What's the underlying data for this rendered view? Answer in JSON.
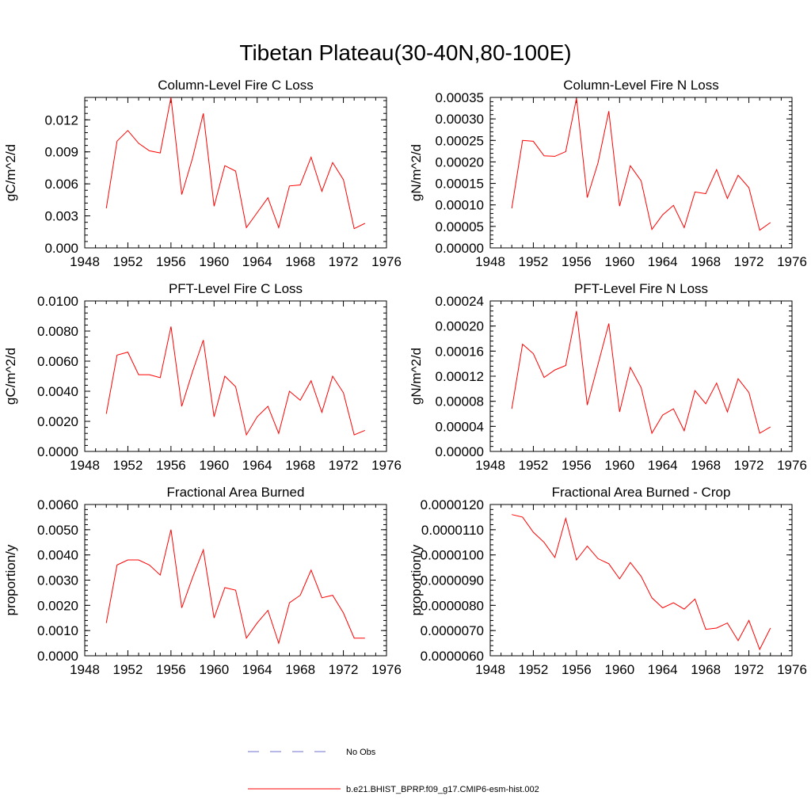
{
  "figure": {
    "title": "Tibetan Plateau(30-40N,80-100E)"
  },
  "colors": {
    "model": "#ff0000",
    "obs": "#6f6fd0",
    "axis": "#000000",
    "background": "#ffffff"
  },
  "legend": {
    "position": "bottom-center",
    "entries": [
      {
        "label": "No Obs",
        "color": "#6f6fd0",
        "style": "dashed"
      },
      {
        "label": "b.e21.BHIST_BPRP.f09_g17.CMIP6-esm-hist.002",
        "color": "#ff0000",
        "style": "solid"
      }
    ]
  },
  "chart_data": [
    {
      "type": "line",
      "title": "Column-Level Fire C Loss",
      "xlabel": "",
      "ylabel": "gC/m^2/d",
      "xlim": [
        1948,
        1976
      ],
      "ylim": [
        0,
        0.0141
      ],
      "xticks": [
        "1948",
        "1952",
        "1956",
        "1960",
        "1964",
        "1968",
        "1972",
        "1976"
      ],
      "yticks": [
        "0.000",
        "0.003",
        "0.006",
        "0.009",
        "0.012"
      ],
      "grid": false,
      "series": [
        {
          "x": [
            1950,
            1951,
            1952,
            1953,
            1954,
            1955,
            1956,
            1957,
            1958,
            1959,
            1960,
            1961,
            1962,
            1963,
            1964,
            1965,
            1966,
            1967,
            1968,
            1969,
            1970,
            1971,
            1972,
            1973,
            1974
          ],
          "y": [
            0.0037,
            0.01,
            0.011,
            0.0098,
            0.0091,
            0.0089,
            0.0141,
            0.005,
            0.0084,
            0.0126,
            0.0039,
            0.0077,
            0.0072,
            0.0019,
            0.0033,
            0.0047,
            0.0019,
            0.0058,
            0.0059,
            0.0085,
            0.0053,
            0.008,
            0.0064,
            0.0018,
            0.0023
          ]
        }
      ]
    },
    {
      "type": "line",
      "title": "Column-Level Fire N Loss",
      "xlabel": "",
      "ylabel": "gN/m^2/d",
      "xlim": [
        1948,
        1976
      ],
      "ylim": [
        0,
        0.00035
      ],
      "xticks": [
        "1948",
        "1952",
        "1956",
        "1960",
        "1964",
        "1968",
        "1972",
        "1976"
      ],
      "yticks": [
        "0.00000",
        "0.00005",
        "0.00010",
        "0.00015",
        "0.00020",
        "0.00025",
        "0.00030",
        "0.00035"
      ],
      "grid": false,
      "series": [
        {
          "x": [
            1950,
            1951,
            1952,
            1953,
            1954,
            1955,
            1956,
            1957,
            1958,
            1959,
            1960,
            1961,
            1962,
            1963,
            1964,
            1965,
            1966,
            1967,
            1968,
            1969,
            1970,
            1971,
            1972,
            1973,
            1974
          ],
          "y": [
            9.2e-05,
            0.00025,
            0.000248,
            0.000214,
            0.000213,
            0.000224,
            0.000348,
            0.000117,
            0.000198,
            0.000318,
            9.7e-05,
            0.000191,
            0.000156,
            4.3e-05,
            7.7e-05,
            9.9e-05,
            4.7e-05,
            0.00013,
            0.000126,
            0.000182,
            0.000115,
            0.000169,
            0.00014,
            4.1e-05,
            5.9e-05
          ]
        }
      ]
    },
    {
      "type": "line",
      "title": "PFT-Level Fire C Loss",
      "xlabel": "",
      "ylabel": "gC/m^2/d",
      "xlim": [
        1948,
        1976
      ],
      "ylim": [
        0,
        0.01
      ],
      "xticks": [
        "1948",
        "1952",
        "1956",
        "1960",
        "1964",
        "1968",
        "1972",
        "1976"
      ],
      "yticks": [
        "0.0000",
        "0.0020",
        "0.0040",
        "0.0060",
        "0.0080",
        "0.0100"
      ],
      "grid": false,
      "series": [
        {
          "x": [
            1950,
            1951,
            1952,
            1953,
            1954,
            1955,
            1956,
            1957,
            1958,
            1959,
            1960,
            1961,
            1962,
            1963,
            1964,
            1965,
            1966,
            1967,
            1968,
            1969,
            1970,
            1971,
            1972,
            1973,
            1974
          ],
          "y": [
            0.0025,
            0.0064,
            0.0066,
            0.0051,
            0.0051,
            0.0049,
            0.0083,
            0.003,
            0.0053,
            0.0074,
            0.0023,
            0.005,
            0.0043,
            0.0011,
            0.0023,
            0.003,
            0.0012,
            0.004,
            0.0034,
            0.0047,
            0.0026,
            0.005,
            0.0039,
            0.0011,
            0.0014
          ]
        }
      ]
    },
    {
      "type": "line",
      "title": "PFT-Level Fire N Loss",
      "xlabel": "",
      "ylabel": "gN/m^2/d",
      "xlim": [
        1948,
        1976
      ],
      "ylim": [
        0,
        0.00024
      ],
      "xticks": [
        "1948",
        "1952",
        "1956",
        "1960",
        "1964",
        "1968",
        "1972",
        "1976"
      ],
      "yticks": [
        "0.00000",
        "0.00004",
        "0.00008",
        "0.00012",
        "0.00016",
        "0.00020",
        "0.00024"
      ],
      "grid": false,
      "series": [
        {
          "x": [
            1950,
            1951,
            1952,
            1953,
            1954,
            1955,
            1956,
            1957,
            1958,
            1959,
            1960,
            1961,
            1962,
            1963,
            1964,
            1965,
            1966,
            1967,
            1968,
            1969,
            1970,
            1971,
            1972,
            1973,
            1974
          ],
          "y": [
            6.8e-05,
            0.000171,
            0.000156,
            0.000118,
            0.00013,
            0.000137,
            0.000224,
            7.4e-05,
            0.000139,
            0.000204,
            6.3e-05,
            0.000134,
            0.000102,
            2.9e-05,
            5.8e-05,
            6.8e-05,
            3.3e-05,
            9.7e-05,
            7.6e-05,
            0.000109,
            6.3e-05,
            0.000116,
            9.4e-05,
            2.9e-05,
            3.9e-05
          ]
        }
      ]
    },
    {
      "type": "line",
      "title": "Fractional Area Burned",
      "xlabel": "",
      "ylabel": "proportion/y",
      "xlim": [
        1948,
        1976
      ],
      "ylim": [
        0,
        0.006
      ],
      "xticks": [
        "1948",
        "1952",
        "1956",
        "1960",
        "1964",
        "1968",
        "1972",
        "1976"
      ],
      "yticks": [
        "0.0000",
        "0.0010",
        "0.0020",
        "0.0030",
        "0.0040",
        "0.0050",
        "0.0060"
      ],
      "grid": false,
      "series": [
        {
          "x": [
            1950,
            1951,
            1952,
            1953,
            1954,
            1955,
            1956,
            1957,
            1958,
            1959,
            1960,
            1961,
            1962,
            1963,
            1964,
            1965,
            1966,
            1967,
            1968,
            1969,
            1970,
            1971,
            1972,
            1973,
            1974
          ],
          "y": [
            0.0013,
            0.0036,
            0.0038,
            0.0038,
            0.0036,
            0.0032,
            0.005,
            0.0019,
            0.0031,
            0.0042,
            0.0015,
            0.0027,
            0.0026,
            0.0007,
            0.0013,
            0.0018,
            0.0005,
            0.0021,
            0.0024,
            0.0034,
            0.0023,
            0.0024,
            0.0017,
            0.0007,
            0.0007
          ]
        }
      ]
    },
    {
      "type": "line",
      "title": "Fractional Area Burned - Crop",
      "xlabel": "",
      "ylabel": "proportion/y",
      "xlim": [
        1948,
        1976
      ],
      "ylim": [
        6e-06,
        1.2e-05
      ],
      "xticks": [
        "1948",
        "1952",
        "1956",
        "1960",
        "1964",
        "1968",
        "1972",
        "1976"
      ],
      "yticks": [
        "0.0000060",
        "0.0000070",
        "0.0000080",
        "0.0000090",
        "0.0000100",
        "0.0000110",
        "0.0000120"
      ],
      "grid": false,
      "series": [
        {
          "x": [
            1950,
            1951,
            1952,
            1953,
            1954,
            1955,
            1956,
            1957,
            1958,
            1959,
            1960,
            1961,
            1962,
            1963,
            1964,
            1965,
            1966,
            1967,
            1968,
            1969,
            1970,
            1971,
            1972,
            1973,
            1974
          ],
          "y": [
            1.16e-05,
            1.15e-05,
            1.09e-05,
            1.05e-05,
            9.9e-06,
            1.145e-05,
            9.8e-06,
            1.035e-05,
            9.85e-06,
            9.65e-06,
            9.05e-06,
            9.7e-06,
            9.15e-06,
            8.3e-06,
            7.9e-06,
            8.1e-06,
            7.85e-06,
            8.25e-06,
            7.05e-06,
            7.1e-06,
            7.3e-06,
            6.6e-06,
            7.4e-06,
            6.25e-06,
            7.1e-06
          ]
        }
      ]
    }
  ]
}
